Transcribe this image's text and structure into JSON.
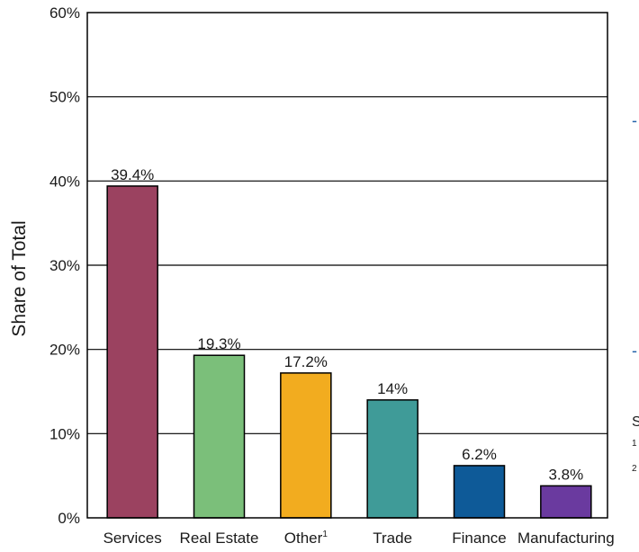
{
  "chart_data": {
    "type": "bar",
    "title": "",
    "xlabel": "",
    "ylabel": "Share of Total",
    "ylim": [
      0,
      60
    ],
    "yticks": [
      0,
      10,
      20,
      30,
      40,
      50,
      60
    ],
    "ytick_labels": [
      "0%",
      "10%",
      "20%",
      "30%",
      "40%",
      "50%",
      "60%"
    ],
    "grid": "horizontal",
    "categories": [
      "Services",
      "Real Estate",
      "Other",
      "Trade",
      "Finance",
      "Manufacturing"
    ],
    "category_superscripts": [
      "",
      "",
      "1",
      "",
      "",
      ""
    ],
    "values": [
      39.4,
      19.3,
      17.2,
      14,
      6.2,
      3.8
    ],
    "value_labels": [
      "39.4%",
      "19.3%",
      "17.2%",
      "14%",
      "6.2%",
      "3.8%"
    ],
    "colors": [
      "#9b4260",
      "#7bbf7a",
      "#f2ac1f",
      "#3f9b98",
      "#0e5a98",
      "#6a3a9f"
    ]
  },
  "edge_fragments": {
    "source_initial": "S",
    "note_1": "1",
    "note_2": "2"
  }
}
